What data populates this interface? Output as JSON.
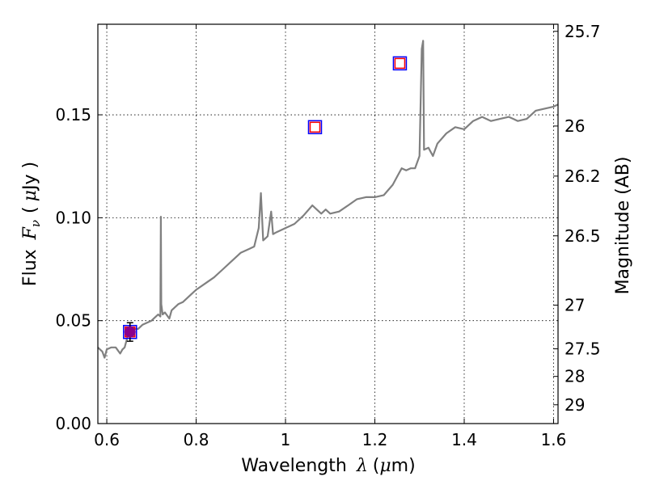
{
  "chart_data": {
    "type": "line",
    "xlabel": {
      "prefix": "Wavelength",
      "symbol": "λ",
      "unit_open": "(",
      "unit_mu": "μ",
      "unit_rest": "m)"
    },
    "ylabel": {
      "prefix": "Flux",
      "symbol": "F",
      "subscript": "ν",
      "unit_open": "(",
      "unit_mu": "μ",
      "unit_rest": "Jy )"
    },
    "y2label": "Magnitude (AB)",
    "xlim": [
      0.58,
      1.61
    ],
    "ylim": [
      0.0,
      0.194
    ],
    "grid": true,
    "x_ticks": [
      {
        "v": 0.6,
        "label": "0.6"
      },
      {
        "v": 0.8,
        "label": "0.8"
      },
      {
        "v": 1.0,
        "label": "1"
      },
      {
        "v": 1.2,
        "label": "1.2"
      },
      {
        "v": 1.4,
        "label": "1.4"
      },
      {
        "v": 1.6,
        "label": "1.6"
      }
    ],
    "y_ticks": [
      {
        "v": 0.0,
        "label": "0.00"
      },
      {
        "v": 0.05,
        "label": "0.05"
      },
      {
        "v": 0.1,
        "label": "0.10"
      },
      {
        "v": 0.15,
        "label": "0.15"
      }
    ],
    "mag_ticks": [
      {
        "mag": 25.7,
        "label": "25.7"
      },
      {
        "mag": 26.0,
        "label": "26"
      },
      {
        "mag": 26.2,
        "label": "26.2"
      },
      {
        "mag": 26.5,
        "label": "26.5"
      },
      {
        "mag": 27.0,
        "label": "27"
      },
      {
        "mag": 27.5,
        "label": "27.5"
      },
      {
        "mag": 28.0,
        "label": "28"
      },
      {
        "mag": 29.0,
        "label": "29"
      }
    ],
    "series": [
      {
        "style": "line",
        "color": "#808080",
        "x": [
          0.58,
          0.59,
          0.595,
          0.6,
          0.61,
          0.62,
          0.63,
          0.635,
          0.64,
          0.65,
          0.66,
          0.67,
          0.68,
          0.69,
          0.7,
          0.71,
          0.715,
          0.72,
          0.721,
          0.722,
          0.725,
          0.73,
          0.74,
          0.745,
          0.75,
          0.76,
          0.77,
          0.78,
          0.79,
          0.8,
          0.82,
          0.84,
          0.86,
          0.88,
          0.9,
          0.92,
          0.93,
          0.94,
          0.945,
          0.95,
          0.96,
          0.968,
          0.972,
          0.98,
          1.0,
          1.02,
          1.04,
          1.06,
          1.08,
          1.09,
          1.1,
          1.12,
          1.14,
          1.16,
          1.18,
          1.2,
          1.22,
          1.24,
          1.25,
          1.26,
          1.27,
          1.28,
          1.29,
          1.3,
          1.305,
          1.308,
          1.31,
          1.32,
          1.33,
          1.34,
          1.36,
          1.38,
          1.4,
          1.42,
          1.44,
          1.46,
          1.48,
          1.5,
          1.52,
          1.54,
          1.55,
          1.56,
          1.58,
          1.6,
          1.61
        ],
        "y": [
          0.037,
          0.035,
          0.032,
          0.036,
          0.037,
          0.037,
          0.034,
          0.036,
          0.037,
          0.045,
          0.046,
          0.046,
          0.048,
          0.049,
          0.05,
          0.052,
          0.053,
          0.052,
          0.1005,
          0.058,
          0.053,
          0.054,
          0.051,
          0.055,
          0.056,
          0.058,
          0.059,
          0.061,
          0.063,
          0.065,
          0.068,
          0.071,
          0.075,
          0.079,
          0.083,
          0.085,
          0.086,
          0.095,
          0.112,
          0.089,
          0.091,
          0.103,
          0.092,
          0.093,
          0.095,
          0.097,
          0.101,
          0.106,
          0.102,
          0.104,
          0.102,
          0.103,
          0.106,
          0.109,
          0.11,
          0.11,
          0.111,
          0.116,
          0.12,
          0.124,
          0.123,
          0.124,
          0.124,
          0.13,
          0.182,
          0.186,
          0.133,
          0.134,
          0.13,
          0.136,
          0.141,
          0.144,
          0.143,
          0.147,
          0.149,
          0.147,
          0.148,
          0.149,
          0.147,
          0.148,
          0.15,
          0.152,
          0.153,
          0.154,
          0.155
        ]
      },
      {
        "style": "square",
        "color": "#0000ff",
        "x": [
          0.652,
          1.066,
          1.256
        ],
        "y": [
          0.0445,
          0.144,
          0.175
        ]
      },
      {
        "style": "square",
        "color": "#ff0000",
        "x": [
          0.652,
          1.066,
          1.256
        ],
        "y": [
          0.0445,
          0.144,
          0.175
        ]
      },
      {
        "style": "circle",
        "color": "#8b008b",
        "x": [
          0.652
        ],
        "y": [
          0.0445
        ],
        "yerr": [
          0.0045
        ]
      }
    ]
  }
}
